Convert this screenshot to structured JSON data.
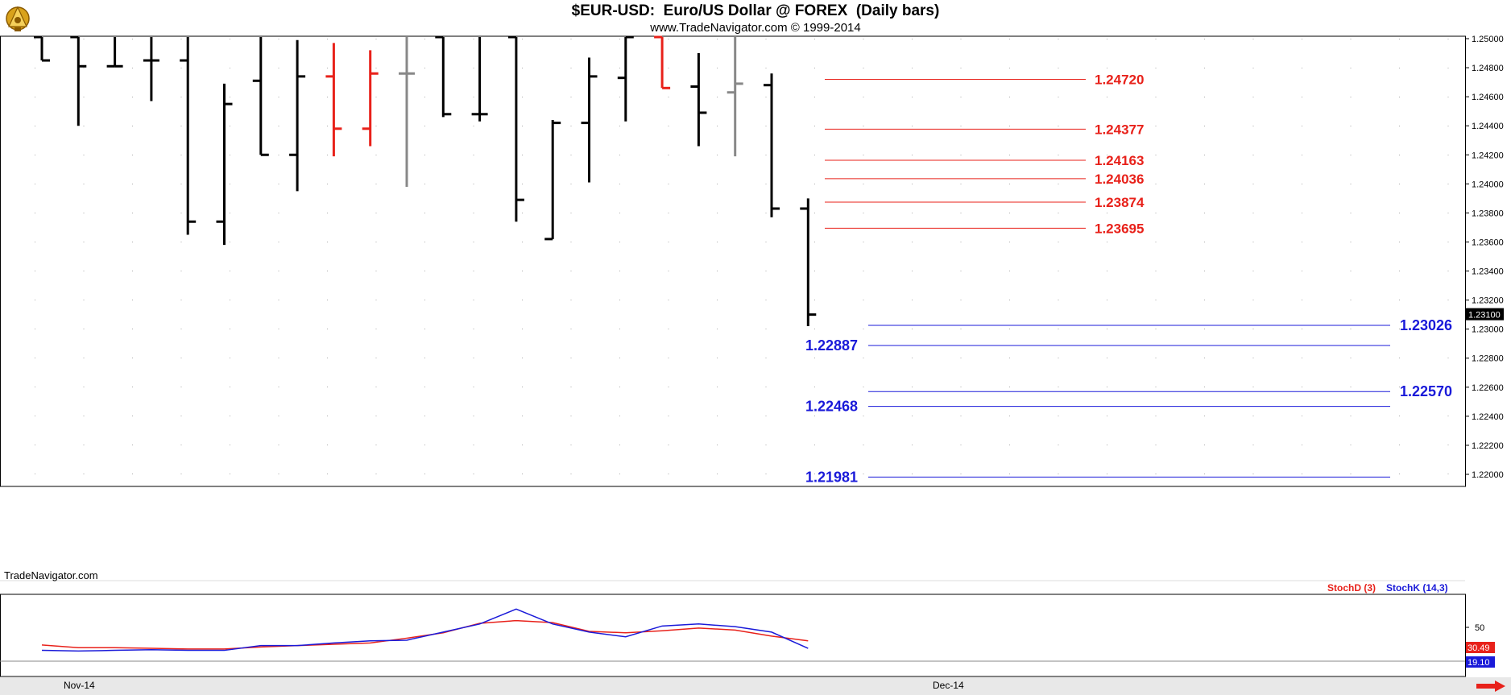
{
  "header": {
    "title": "$EUR-USD:  Euro/US Dollar @ FOREX  (Daily bars)",
    "subtitle": "www.TradeNavigator.com © 1999-2014",
    "logo_icon": "sextant-icon"
  },
  "watermark": "TradeNavigator.com",
  "chart_data": [
    {
      "type": "ohlc",
      "title": "$EUR-USD:  Euro/US Dollar @ FOREX  (Daily bars)",
      "xlabel": "",
      "ylabel": "",
      "x_labels": [
        "Nov-14",
        "Dec-14"
      ],
      "ylim": [
        1.2195,
        1.251
      ],
      "y_ticks": [
        "1.25000",
        "1.24800",
        "1.24600",
        "1.24400",
        "1.24200",
        "1.24000",
        "1.23800",
        "1.23600",
        "1.23400",
        "1.23200",
        "1.23000",
        "1.22800",
        "1.22600",
        "1.22400",
        "1.22200",
        "1.22000"
      ],
      "last_price": "1.23100",
      "grid": "dotted",
      "colors": {
        "up": "#000000",
        "down": "#e8211a",
        "neutral": "#888888",
        "resistance": "#e8211a",
        "support": "#1a1ad9"
      },
      "bars": [
        {
          "open": 1.2505,
          "high": 1.2505,
          "low": 1.2485,
          "close": 1.2485,
          "color": "black"
        },
        {
          "open": 1.2505,
          "high": 1.2505,
          "low": 1.244,
          "close": 1.2481,
          "color": "black"
        },
        {
          "open": 1.2481,
          "high": 1.2505,
          "low": 1.2481,
          "close": 1.2481,
          "color": "black"
        },
        {
          "open": 1.2485,
          "high": 1.2505,
          "low": 1.2457,
          "close": 1.2485,
          "color": "black"
        },
        {
          "open": 1.2485,
          "high": 1.2505,
          "low": 1.2365,
          "close": 1.2374,
          "color": "black"
        },
        {
          "open": 1.2374,
          "high": 1.2469,
          "low": 1.2358,
          "close": 1.2455,
          "color": "black"
        },
        {
          "open": 1.2471,
          "high": 1.2505,
          "low": 1.242,
          "close": 1.242,
          "color": "black"
        },
        {
          "open": 1.242,
          "high": 1.2499,
          "low": 1.2395,
          "close": 1.2474,
          "color": "black"
        },
        {
          "open": 1.2474,
          "high": 1.2497,
          "low": 1.2419,
          "close": 1.2438,
          "color": "red"
        },
        {
          "open": 1.2438,
          "high": 1.2492,
          "low": 1.2426,
          "close": 1.2476,
          "color": "red"
        },
        {
          "open": 1.2476,
          "high": 1.2505,
          "low": 1.2398,
          "close": 1.2476,
          "color": "gray"
        },
        {
          "open": 1.2505,
          "high": 1.2505,
          "low": 1.2446,
          "close": 1.2448,
          "color": "black"
        },
        {
          "open": 1.2448,
          "high": 1.2505,
          "low": 1.2443,
          "close": 1.2448,
          "color": "black"
        },
        {
          "open": 1.2505,
          "high": 1.2505,
          "low": 1.2374,
          "close": 1.2389,
          "color": "black"
        },
        {
          "open": 1.2362,
          "high": 1.2444,
          "low": 1.2362,
          "close": 1.2442,
          "color": "black"
        },
        {
          "open": 1.2442,
          "high": 1.2487,
          "low": 1.2401,
          "close": 1.2474,
          "color": "black"
        },
        {
          "open": 1.2473,
          "high": 1.2505,
          "low": 1.2443,
          "close": 1.2505,
          "color": "black"
        },
        {
          "open": 1.2505,
          "high": 1.2505,
          "low": 1.2466,
          "close": 1.2466,
          "color": "red"
        },
        {
          "open": 1.2467,
          "high": 1.249,
          "low": 1.2426,
          "close": 1.2449,
          "color": "black"
        },
        {
          "open": 1.2463,
          "high": 1.2505,
          "low": 1.2419,
          "close": 1.2469,
          "color": "gray"
        },
        {
          "open": 1.2468,
          "high": 1.2476,
          "low": 1.2377,
          "close": 1.2383,
          "color": "black"
        },
        {
          "open": 1.2383,
          "high": 1.239,
          "low": 1.2302,
          "close": 1.231,
          "color": "black"
        }
      ],
      "resistance_levels": [
        "1.24720",
        "1.24377",
        "1.24163",
        "1.24036",
        "1.23874",
        "1.23695"
      ],
      "support_levels": [
        "1.23026",
        "1.22887",
        "1.22570",
        "1.22468",
        "1.21981"
      ]
    },
    {
      "type": "line",
      "title": "",
      "legend": [
        "StochD (3)",
        "StochK (14,3)"
      ],
      "ylim": [
        0,
        100
      ],
      "y_ticks": [
        "50"
      ],
      "last_values": {
        "d": "30.49",
        "k": "19.10"
      },
      "series": [
        {
          "name": "StochD (3)",
          "color": "#e8211a",
          "values": [
            24,
            20,
            20,
            19,
            18,
            18,
            21,
            23,
            25,
            27,
            34,
            42,
            56,
            60,
            57,
            44,
            42,
            45,
            49,
            46,
            37,
            30
          ]
        },
        {
          "name": "StochK (14,3)",
          "color": "#1a1ad9",
          "values": [
            16,
            15,
            16,
            17,
            16,
            16,
            23,
            23,
            27,
            30,
            31,
            43,
            55,
            77,
            55,
            43,
            36,
            52,
            55,
            51,
            43,
            19
          ]
        }
      ]
    }
  ]
}
